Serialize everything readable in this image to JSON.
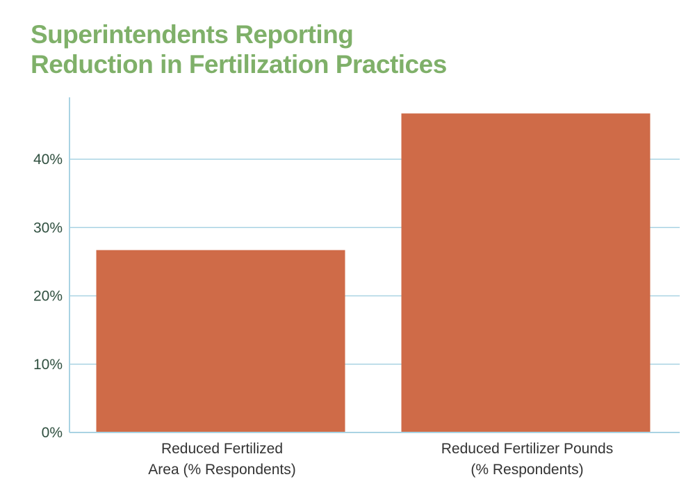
{
  "colors": {
    "title": "#7fb069",
    "bar": "#cf6b48",
    "grid": "#a9d3e3",
    "axis": "#a9d3e3",
    "tick_text": "#2f4f3f",
    "label_text": "#333333"
  },
  "chart_data": {
    "type": "bar",
    "title_lines": [
      "Superintendents Reporting",
      "Reduction in Fertilization Practices"
    ],
    "categories": [
      [
        "Reduced Fertilized",
        "Area (% Respondents)"
      ],
      [
        "Reduced Fertilizer Pounds",
        "(% Respondents)"
      ]
    ],
    "values": [
      26.7,
      46.7
    ],
    "ylim": [
      0,
      50
    ],
    "yticks": [
      0,
      10,
      20,
      30,
      40
    ],
    "ytick_labels": [
      "0%",
      "10%",
      "20%",
      "30%",
      "40%"
    ],
    "xlabel": "",
    "ylabel": "",
    "grid": true
  }
}
